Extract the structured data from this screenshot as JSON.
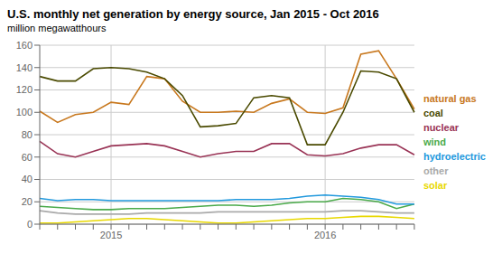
{
  "chart_data": {
    "type": "line",
    "title": "U.S. monthly net generation by energy source, Jan 2015 - Oct 2016",
    "y_label": "million megawatthours",
    "categories": [
      null,
      null,
      null,
      null,
      "2015",
      null,
      null,
      null,
      null,
      null,
      null,
      null,
      null,
      null,
      null,
      null,
      "2016",
      null,
      null,
      null,
      null,
      null
    ],
    "series": [
      {
        "name": "natural gas",
        "color": "#c8781e",
        "values": [
          101,
          91,
          98,
          100,
          109,
          107,
          132,
          130,
          110,
          100,
          100,
          101,
          100,
          108,
          112,
          100,
          99,
          104,
          152,
          155,
          130,
          103
        ]
      },
      {
        "name": "coal",
        "color": "#4a4a00",
        "values": [
          132,
          128,
          128,
          139,
          140,
          139,
          136,
          130,
          115,
          87,
          88,
          90,
          113,
          115,
          113,
          71,
          71,
          100,
          137,
          136,
          130,
          100
        ]
      },
      {
        "name": "nuclear",
        "color": "#993355",
        "values": [
          74,
          63,
          60,
          65,
          70,
          71,
          72,
          70,
          65,
          60,
          63,
          65,
          65,
          72,
          72,
          62,
          61,
          63,
          68,
          71,
          71,
          62
        ]
      },
      {
        "name": "wind",
        "color": "#4aaa4a",
        "values": [
          16,
          15,
          14,
          13,
          13,
          14,
          14,
          14,
          15,
          16,
          17,
          17,
          16,
          17,
          19,
          20,
          20,
          23,
          22,
          20,
          14,
          18
        ]
      },
      {
        "name": "hydroelectric",
        "color": "#2299dd",
        "values": [
          23,
          21,
          22,
          22,
          21,
          21,
          21,
          21,
          21,
          21,
          21,
          22,
          22,
          22,
          23,
          25,
          26,
          25,
          24,
          22,
          18,
          18
        ]
      },
      {
        "name": "other",
        "color": "#aaaaaa",
        "values": [
          12,
          10,
          9,
          9,
          9,
          9,
          10,
          10,
          10,
          10,
          11,
          11,
          11,
          11,
          11,
          11,
          11,
          12,
          12,
          11,
          10,
          10
        ]
      },
      {
        "name": "solar",
        "color": "#e8d800",
        "values": [
          1,
          1,
          2,
          3,
          4,
          5,
          5,
          4,
          3,
          2,
          1,
          1,
          2,
          3,
          4,
          5,
          5,
          6,
          7,
          7,
          6,
          5
        ]
      }
    ],
    "ylim": [
      0,
      160
    ],
    "yticks": [
      0,
      20,
      40,
      60,
      80,
      100,
      120,
      140,
      160
    ],
    "grid": true,
    "legend": "right"
  }
}
